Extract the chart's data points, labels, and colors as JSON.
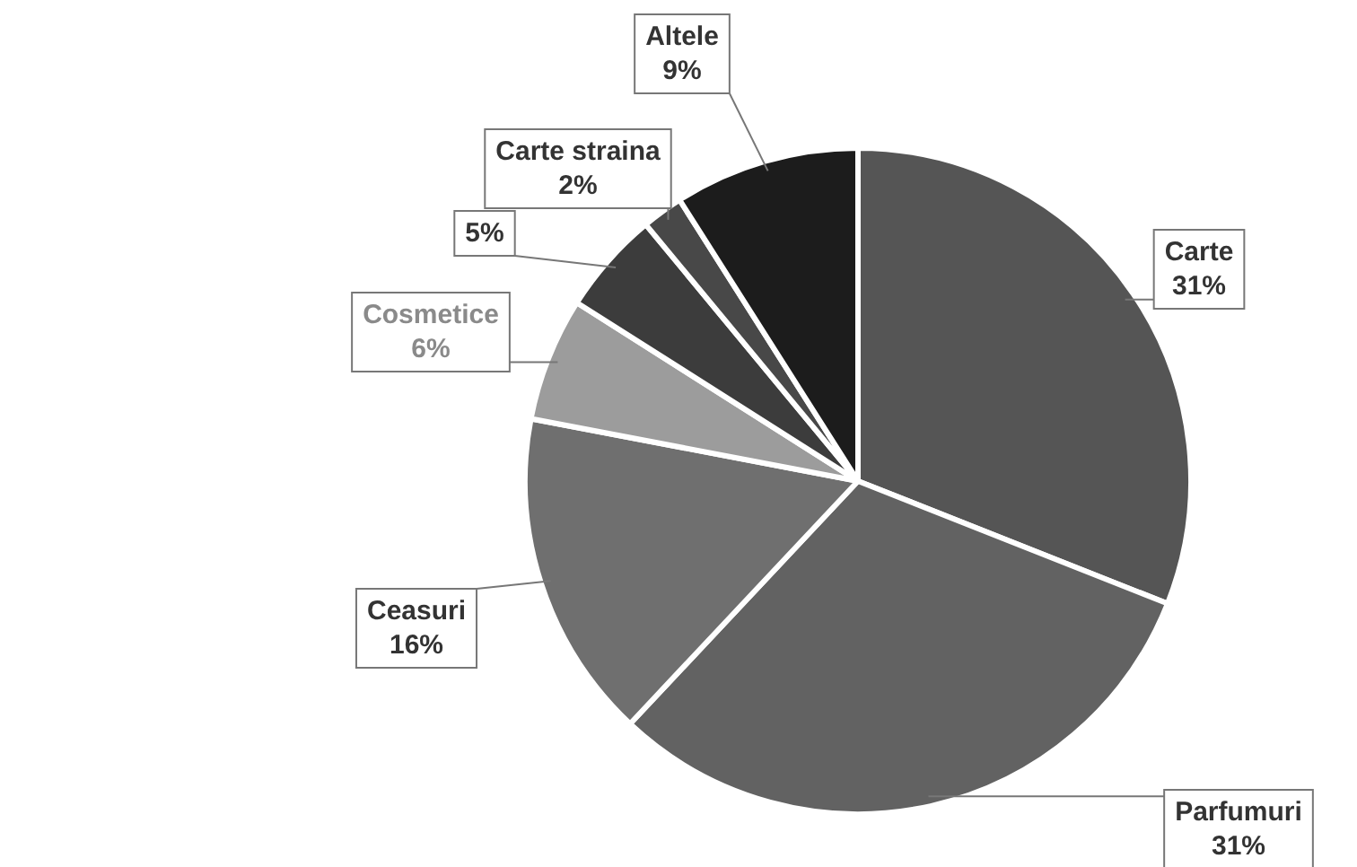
{
  "chart_data": {
    "type": "pie",
    "categories": [
      "Carte",
      "Parfumuri",
      "Ceasuri",
      "Cosmetice",
      null,
      "Carte straina",
      "Altele"
    ],
    "values": [
      31,
      31,
      16,
      6,
      5,
      2,
      9
    ],
    "value_labels": [
      "31%",
      "31%",
      "16%",
      "6%",
      "5%",
      "2%",
      "9%"
    ],
    "colors": [
      "#555555",
      "#626262",
      "#6f6f6f",
      "#9c9c9c",
      "#3c3c3c",
      "#484848",
      "#1c1c1c"
    ],
    "legend": false
  }
}
